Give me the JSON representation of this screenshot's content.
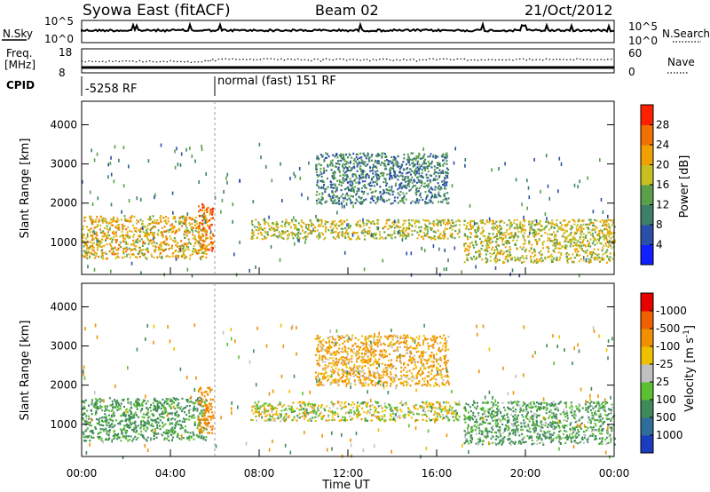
{
  "header": {
    "station": "Syowa East (fitACF)",
    "beam": "Beam 02",
    "date": "21/Oct/2012"
  },
  "top_panels": {
    "nsky_label": "N.Sky",
    "nsky_ticks": [
      "10^5",
      "10^0"
    ],
    "nsearch_label": "N.Search",
    "nsearch_ticks": [
      "10^5",
      "10^0"
    ],
    "freq_label_1": "Freq.",
    "freq_label_2": "[MHz]",
    "freq_ticks": [
      "18",
      "8"
    ],
    "nave_label": "Nave",
    "nave_ticks": [
      "60",
      "0"
    ],
    "cpid_label": "CPID",
    "cpid_segments": [
      {
        "label": "-5258 RF",
        "start_hour": 0
      },
      {
        "label": "normal (fast) 151 RF",
        "start_hour": 6
      }
    ]
  },
  "x_axis": {
    "title": "Time UT",
    "ticks": [
      "00:00",
      "04:00",
      "08:00",
      "12:00",
      "16:00",
      "20:00",
      "00:00"
    ],
    "tick_hours": [
      0,
      4,
      8,
      12,
      16,
      20,
      24
    ],
    "range_hours": [
      0,
      24
    ]
  },
  "y_axis": {
    "title": "Slant Range [km]",
    "ticks": [
      "1000",
      "2000",
      "3000",
      "4000"
    ],
    "tick_values": [
      1000,
      2000,
      3000,
      4000
    ],
    "range_km": [
      180,
      4600
    ]
  },
  "colorbars": {
    "power": {
      "title": "Power [dB]",
      "labels": [
        "4",
        "8",
        "12",
        "16",
        "20",
        "24",
        "28"
      ],
      "colors": [
        "#1020ff",
        "#2a4fa8",
        "#3e7f6a",
        "#5aa04a",
        "#c8c020",
        "#f0a000",
        "#f07000",
        "#ff2000"
      ]
    },
    "velocity": {
      "title": "Velocity [m s",
      "title_sup": "-1",
      "title_end": "]",
      "labels": [
        "1000",
        "500",
        "100",
        "25",
        "-25",
        "-100",
        "-500",
        "-1000"
      ],
      "colors": [
        "#1a3cbe",
        "#2f6e9a",
        "#3f8a5a",
        "#5cc030",
        "#c0c0c0",
        "#f0c000",
        "#f09000",
        "#f06000",
        "#e80000"
      ]
    }
  },
  "chart_data": [
    {
      "type": "heatmap",
      "title": "",
      "variable": "Power",
      "unit": "dB",
      "xlabel": "Time UT",
      "ylabel": "Slant Range [km]",
      "xlim_hours": [
        0,
        24
      ],
      "ylim_km": [
        180,
        4600
      ],
      "colorbar_range_db": [
        0,
        30
      ],
      "scatter_regions": [
        {
          "t_start_h": 0.0,
          "t_end_h": 5.6,
          "range_km": [
            600,
            1700
          ],
          "typical_db": 20
        },
        {
          "t_start_h": 5.2,
          "t_end_h": 5.9,
          "range_km": [
            800,
            2000
          ],
          "typical_db": 26
        },
        {
          "t_start_h": 7.6,
          "t_end_h": 17.0,
          "range_km": [
            1100,
            1600
          ],
          "typical_db": 18
        },
        {
          "t_start_h": 10.5,
          "t_end_h": 16.5,
          "range_km": [
            2000,
            3300
          ],
          "typical_db": 10
        },
        {
          "t_start_h": 17.2,
          "t_end_h": 24.0,
          "range_km": [
            500,
            1600
          ],
          "typical_db": 18
        }
      ]
    },
    {
      "type": "heatmap",
      "title": "",
      "variable": "Velocity",
      "unit": "m s^-1",
      "xlabel": "Time UT",
      "ylabel": "Slant Range [km]",
      "xlim_hours": [
        0,
        24
      ],
      "ylim_km": [
        180,
        4600
      ],
      "colorbar_range_ms": [
        -1000,
        1000
      ],
      "scatter_regions": [
        {
          "t_start_h": 0.0,
          "t_end_h": 5.6,
          "range_km": [
            600,
            1700
          ],
          "typical_ms": 150
        },
        {
          "t_start_h": 5.2,
          "t_end_h": 5.9,
          "range_km": [
            800,
            2000
          ],
          "typical_ms": -400
        },
        {
          "t_start_h": 7.6,
          "t_end_h": 17.0,
          "range_km": [
            1100,
            1600
          ],
          "typical_ms": 0
        },
        {
          "t_start_h": 10.5,
          "t_end_h": 16.5,
          "range_km": [
            2000,
            3300
          ],
          "typical_ms": -120
        },
        {
          "t_start_h": 17.2,
          "t_end_h": 24.0,
          "range_km": [
            500,
            1600
          ],
          "typical_ms": 120
        }
      ]
    }
  ]
}
